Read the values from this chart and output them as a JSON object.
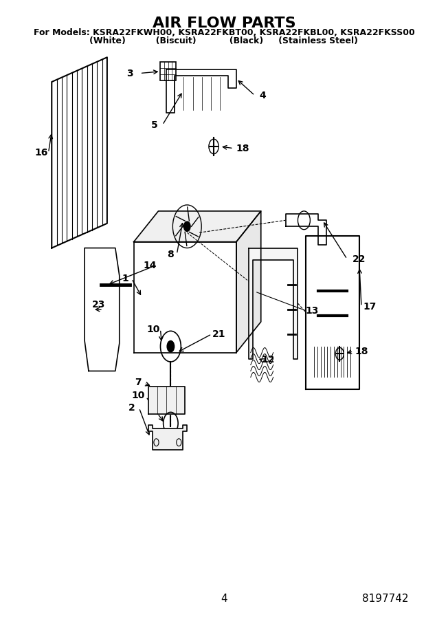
{
  "title": "AIR FLOW PARTS",
  "subtitle_line1": "For Models: KSRA22FKWH00, KSRA22FKBT00, KSRA22FKBL00, KSRA22FKSS00",
  "subtitle_line2": "(White)          (Biscuit)           (Black)     (Stainless Steel)",
  "page_number": "4",
  "doc_number": "8197742",
  "bg_color": "#ffffff",
  "line_color": "#000000",
  "title_fontsize": 16,
  "subtitle_fontsize": 9,
  "label_fontsize": 10
}
